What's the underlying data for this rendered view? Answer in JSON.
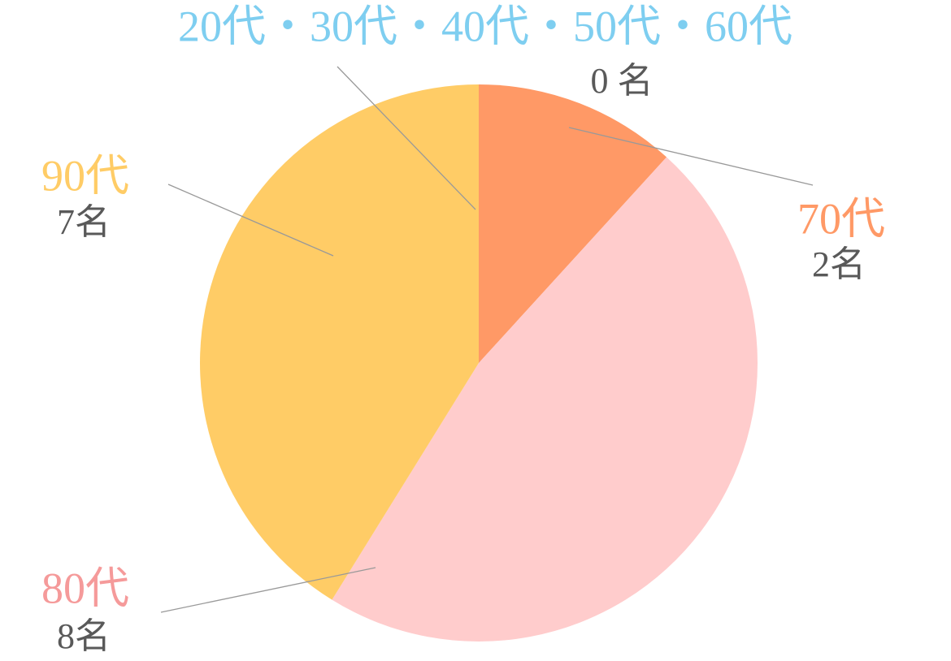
{
  "chart_data": {
    "type": "pie",
    "categories": [
      "20代・30代・40代・50代・60代",
      "70代",
      "80代",
      "90代"
    ],
    "values": [
      0,
      2,
      8,
      7
    ],
    "value_labels": [
      "0 名",
      "2名",
      "8名",
      "7名"
    ],
    "colors": [
      "#7ecef0",
      "#ff9966",
      "#ffcccc",
      "#ffcc66"
    ],
    "label_colors": [
      "#7ecef0",
      "#ff9966",
      "#f59a9a",
      "#ffcc66"
    ]
  }
}
